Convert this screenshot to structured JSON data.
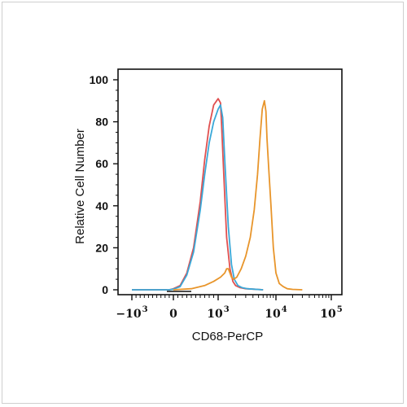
{
  "chart_data": {
    "type": "line",
    "xlabel": "CD68-PerCP",
    "ylabel": "Relative Cell Number",
    "ylim": [
      0,
      100
    ],
    "xscale": "biexponential",
    "yticks": [
      0,
      20,
      40,
      60,
      80,
      100
    ],
    "xticks": [
      {
        "value": -1000,
        "base": "−10",
        "exp": "3"
      },
      {
        "value": 0,
        "base": "0",
        "exp": ""
      },
      {
        "value": 1000,
        "base": "10",
        "exp": "3"
      },
      {
        "value": 10000,
        "base": "10",
        "exp": "4"
      },
      {
        "value": 100000,
        "base": "10",
        "exp": "5"
      }
    ],
    "grid": false,
    "legend": "none",
    "series": [
      {
        "color": "#e05050",
        "x": [
          -1000,
          -100,
          0,
          150,
          300,
          450,
          600,
          700,
          800,
          900,
          1000,
          1100,
          1150,
          1250,
          1400,
          1600,
          1800,
          2000,
          2400,
          3000,
          4000,
          6000
        ],
        "values": [
          0,
          0,
          0.5,
          2,
          8,
          20,
          42,
          62,
          78,
          88,
          91,
          89,
          78,
          55,
          25,
          10,
          4,
          2,
          1,
          0.5,
          0.3,
          0
        ]
      },
      {
        "color": "#3aa8d8",
        "x": [
          -1000,
          -100,
          0,
          150,
          300,
          450,
          600,
          700,
          800,
          900,
          1000,
          1100,
          1200,
          1300,
          1500,
          1700,
          1900,
          2200,
          2600,
          3200,
          4000,
          6000
        ],
        "values": [
          0,
          0,
          0.3,
          1.5,
          7,
          18,
          38,
          55,
          70,
          80,
          86,
          88,
          82,
          62,
          30,
          12,
          5,
          2,
          1,
          0.5,
          0.3,
          0
        ]
      },
      {
        "color": "#e8952b",
        "x": [
          0,
          400,
          700,
          900,
          1100,
          1300,
          1400,
          1500,
          1600,
          1700,
          1850,
          2100,
          2500,
          3000,
          3600,
          4200,
          4800,
          5300,
          5800,
          6300,
          6700,
          7000,
          7500,
          8200,
          9000,
          10000,
          11500,
          13500,
          16000,
          20000,
          30000
        ],
        "values": [
          0,
          0.5,
          2,
          4,
          6,
          8,
          10,
          10,
          8,
          6,
          5,
          6,
          10,
          16,
          25,
          38,
          55,
          72,
          86,
          90,
          85,
          72,
          58,
          40,
          20,
          8,
          3,
          1.5,
          0.5,
          0.2,
          0
        ]
      }
    ]
  }
}
